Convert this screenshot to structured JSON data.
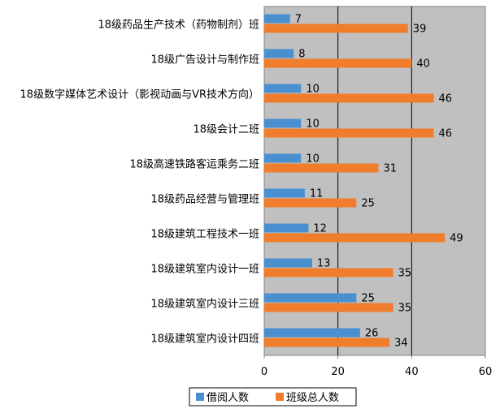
{
  "chart_data": {
    "type": "bar",
    "orientation": "horizontal",
    "categories": [
      "18级药品生产技术（药物制剂）班",
      "18级广告设计与制作班",
      "18级数字媒体艺术设计（影视动画与VR技术方向）",
      "18级会计二班",
      "18级高速铁路客运乘务二班",
      "18级药品经营与管理班",
      "18级建筑工程技术一班",
      "18级建筑室内设计一班",
      "18级建筑室内设计三班",
      "18级建筑室内设计四班"
    ],
    "series": [
      {
        "name": "借阅人数",
        "values": [
          7,
          8,
          10,
          10,
          10,
          11,
          12,
          13,
          25,
          26
        ],
        "color": "#4a8fd0"
      },
      {
        "name": "班级总人数",
        "values": [
          39,
          40,
          46,
          46,
          31,
          25,
          49,
          35,
          35,
          34
        ],
        "color": "#f07d2b"
      }
    ],
    "xlim": [
      0,
      60
    ],
    "xticks": [
      "0",
      "20",
      "40",
      "60"
    ],
    "grid": true,
    "plot_background": "#c0c0c0",
    "legend_position": "bottom"
  }
}
